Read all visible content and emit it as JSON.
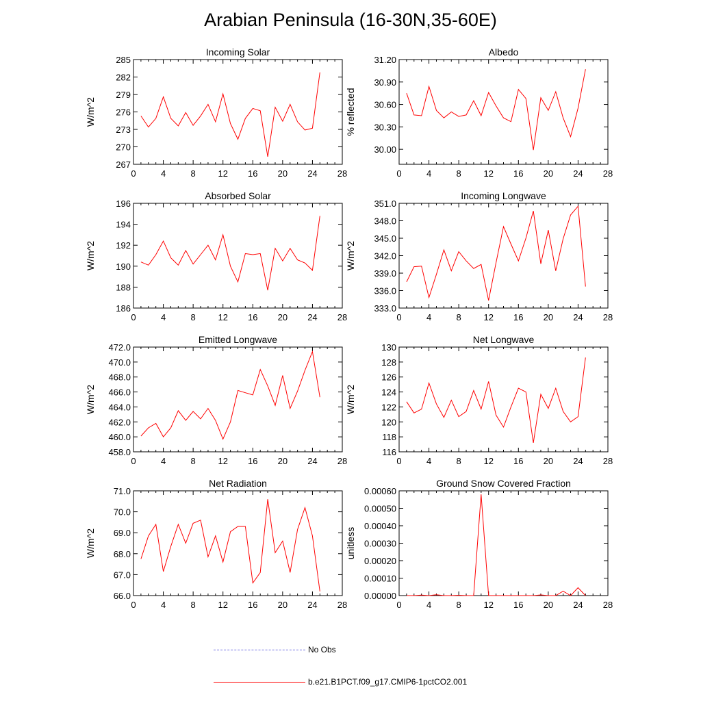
{
  "page_title": "Arabian Peninsula (16-30N,35-60E)",
  "colors": {
    "model_line": "#ff0000",
    "obs_line": "#6a6ae0",
    "axis": "#000000"
  },
  "legend": {
    "obs_label": "No Obs",
    "model_label": "b.e21.B1PCT.f09_g17.CMIP6-1pctCO2.001"
  },
  "chart_data": [
    {
      "type": "line",
      "title": "Incoming Solar",
      "xlabel": "",
      "ylabel": "W/m^2",
      "xlim": [
        0,
        28
      ],
      "ylim": [
        267,
        285
      ],
      "xticks": [
        "0",
        "4",
        "8",
        "12",
        "16",
        "20",
        "24",
        "28"
      ],
      "yticks": [
        "267",
        "270",
        "273",
        "276",
        "279",
        "282",
        "285"
      ],
      "series": [
        {
          "x": [
            1,
            2,
            3,
            4,
            5,
            6,
            7,
            8,
            9,
            10,
            11,
            12,
            13,
            14,
            15,
            16,
            17,
            18,
            19,
            20,
            21,
            22,
            23,
            24,
            25
          ],
          "values": [
            275.3,
            273.4,
            274.9,
            278.6,
            274.9,
            273.6,
            275.9,
            273.7,
            275.3,
            277.3,
            274.3,
            279.1,
            274.0,
            271.3,
            274.9,
            276.6,
            276.2,
            268.3,
            276.8,
            274.4,
            277.3,
            274.3,
            272.9,
            273.2,
            282.8
          ]
        }
      ]
    },
    {
      "type": "line",
      "title": "Albedo",
      "xlabel": "",
      "ylabel": "% reflected",
      "xlim": [
        0,
        28
      ],
      "ylim": [
        29.8,
        31.2
      ],
      "xticks": [
        "0",
        "4",
        "8",
        "12",
        "16",
        "20",
        "24",
        "28"
      ],
      "yticks": [
        "30.00",
        "30.30",
        "30.60",
        "30.90",
        "31.20"
      ],
      "series": [
        {
          "x": [
            1,
            2,
            3,
            4,
            5,
            6,
            7,
            8,
            9,
            10,
            11,
            12,
            13,
            14,
            15,
            16,
            17,
            18,
            19,
            20,
            21,
            22,
            23,
            24,
            25
          ],
          "values": [
            30.75,
            30.46,
            30.45,
            30.84,
            30.52,
            30.42,
            30.5,
            30.44,
            30.46,
            30.65,
            30.45,
            30.76,
            30.58,
            30.42,
            30.37,
            30.8,
            30.68,
            29.99,
            30.69,
            30.52,
            30.77,
            30.42,
            30.17,
            30.55,
            31.07
          ]
        }
      ]
    },
    {
      "type": "line",
      "title": "Absorbed Solar",
      "xlabel": "",
      "ylabel": "W/m^2",
      "xlim": [
        0,
        28
      ],
      "ylim": [
        186,
        196
      ],
      "xticks": [
        "0",
        "4",
        "8",
        "12",
        "16",
        "20",
        "24",
        "28"
      ],
      "yticks": [
        "186",
        "188",
        "190",
        "192",
        "194",
        "196"
      ],
      "series": [
        {
          "x": [
            1,
            2,
            3,
            4,
            5,
            6,
            7,
            8,
            9,
            10,
            11,
            12,
            13,
            14,
            15,
            16,
            17,
            18,
            19,
            20,
            21,
            22,
            23,
            24,
            25
          ],
          "values": [
            190.4,
            190.1,
            191.1,
            192.4,
            190.8,
            190.1,
            191.5,
            190.2,
            191.1,
            192.0,
            190.6,
            193.0,
            190.0,
            188.5,
            191.2,
            191.1,
            191.2,
            187.7,
            191.7,
            190.5,
            191.7,
            190.6,
            190.3,
            189.6,
            194.8
          ]
        }
      ]
    },
    {
      "type": "line",
      "title": "Incoming Longwave",
      "xlabel": "",
      "ylabel": "W/m^2",
      "xlim": [
        0,
        28
      ],
      "ylim": [
        333,
        351
      ],
      "xticks": [
        "0",
        "4",
        "8",
        "12",
        "16",
        "20",
        "24",
        "28"
      ],
      "yticks": [
        "333.0",
        "336.0",
        "339.0",
        "342.0",
        "345.0",
        "348.0",
        "351.0"
      ],
      "series": [
        {
          "x": [
            1,
            2,
            3,
            4,
            5,
            6,
            7,
            8,
            9,
            10,
            11,
            12,
            13,
            14,
            15,
            16,
            17,
            18,
            19,
            20,
            21,
            22,
            23,
            24,
            25
          ],
          "values": [
            337.5,
            340.1,
            340.2,
            334.8,
            338.8,
            343.0,
            339.4,
            342.7,
            341.1,
            339.8,
            340.5,
            334.3,
            340.8,
            347.0,
            344.0,
            341.1,
            345.0,
            349.7,
            340.6,
            346.4,
            339.4,
            344.9,
            349.0,
            350.5,
            336.7
          ]
        }
      ]
    },
    {
      "type": "line",
      "title": "Emitted Longwave",
      "xlabel": "",
      "ylabel": "W/m^2",
      "xlim": [
        0,
        28
      ],
      "ylim": [
        458,
        472
      ],
      "xticks": [
        "0",
        "4",
        "8",
        "12",
        "16",
        "20",
        "24",
        "28"
      ],
      "yticks": [
        "458.0",
        "460.0",
        "462.0",
        "464.0",
        "466.0",
        "468.0",
        "470.0",
        "472.0"
      ],
      "series": [
        {
          "x": [
            1,
            2,
            3,
            4,
            5,
            6,
            7,
            8,
            9,
            10,
            11,
            12,
            13,
            14,
            15,
            16,
            17,
            18,
            19,
            20,
            21,
            22,
            23,
            24,
            25
          ],
          "values": [
            460.1,
            461.2,
            461.8,
            460.0,
            461.2,
            463.5,
            462.2,
            463.4,
            462.4,
            463.8,
            462.2,
            459.7,
            462.0,
            466.2,
            465.9,
            465.6,
            469.0,
            466.8,
            464.2,
            468.2,
            463.8,
            466.1,
            468.9,
            471.4,
            465.3
          ]
        }
      ]
    },
    {
      "type": "line",
      "title": "Net Longwave",
      "xlabel": "",
      "ylabel": "W/m^2",
      "xlim": [
        0,
        28
      ],
      "ylim": [
        116,
        130
      ],
      "xticks": [
        "0",
        "4",
        "8",
        "12",
        "16",
        "20",
        "24",
        "28"
      ],
      "yticks": [
        "116",
        "118",
        "120",
        "122",
        "124",
        "126",
        "128",
        "130"
      ],
      "series": [
        {
          "x": [
            1,
            2,
            3,
            4,
            5,
            6,
            7,
            8,
            9,
            10,
            11,
            12,
            13,
            14,
            15,
            16,
            17,
            18,
            19,
            20,
            21,
            22,
            23,
            24,
            25
          ],
          "values": [
            122.7,
            121.2,
            121.7,
            125.2,
            122.4,
            120.6,
            122.9,
            120.7,
            121.4,
            124.2,
            121.7,
            125.4,
            120.9,
            119.3,
            122.0,
            124.5,
            124.0,
            117.2,
            123.7,
            121.8,
            124.5,
            121.4,
            120.0,
            120.7,
            128.6
          ]
        }
      ]
    },
    {
      "type": "line",
      "title": "Net Radiation",
      "xlabel": "",
      "ylabel": "W/m^2",
      "xlim": [
        0,
        28
      ],
      "ylim": [
        66,
        71
      ],
      "xticks": [
        "0",
        "4",
        "8",
        "12",
        "16",
        "20",
        "24",
        "28"
      ],
      "yticks": [
        "66.0",
        "67.0",
        "68.0",
        "69.0",
        "70.0",
        "71.0"
      ],
      "series": [
        {
          "x": [
            1,
            2,
            3,
            4,
            5,
            6,
            7,
            8,
            9,
            10,
            11,
            12,
            13,
            14,
            15,
            16,
            17,
            18,
            19,
            20,
            21,
            22,
            23,
            24,
            25
          ],
          "values": [
            67.75,
            68.85,
            69.4,
            67.15,
            68.35,
            69.4,
            68.5,
            69.45,
            69.6,
            67.85,
            68.85,
            67.6,
            69.05,
            69.3,
            69.3,
            66.6,
            67.1,
            70.6,
            68.05,
            68.6,
            67.1,
            69.15,
            70.2,
            68.85,
            66.2
          ]
        }
      ]
    },
    {
      "type": "line",
      "title": "Ground Snow Covered Fraction",
      "xlabel": "",
      "ylabel": "unitless",
      "xlim": [
        0,
        28
      ],
      "ylim": [
        0,
        0.0006
      ],
      "xticks": [
        "0",
        "4",
        "8",
        "12",
        "16",
        "20",
        "24",
        "28"
      ],
      "yticks": [
        "0.00000",
        "0.00010",
        "0.00020",
        "0.00030",
        "0.00040",
        "0.00050",
        "0.00060"
      ],
      "series": [
        {
          "x": [
            1,
            2,
            3,
            4,
            5,
            6,
            7,
            8,
            9,
            10,
            11,
            12,
            13,
            14,
            15,
            16,
            17,
            18,
            19,
            20,
            21,
            22,
            23,
            24,
            25
          ],
          "values": [
            0,
            0,
            3e-06,
            0,
            5e-06,
            0,
            0,
            2e-06,
            0,
            0,
            0.00058,
            0,
            0,
            0,
            0,
            0,
            0,
            0,
            4e-06,
            0,
            0,
            2.5e-05,
            0,
            4.5e-05,
            0
          ]
        }
      ]
    }
  ]
}
